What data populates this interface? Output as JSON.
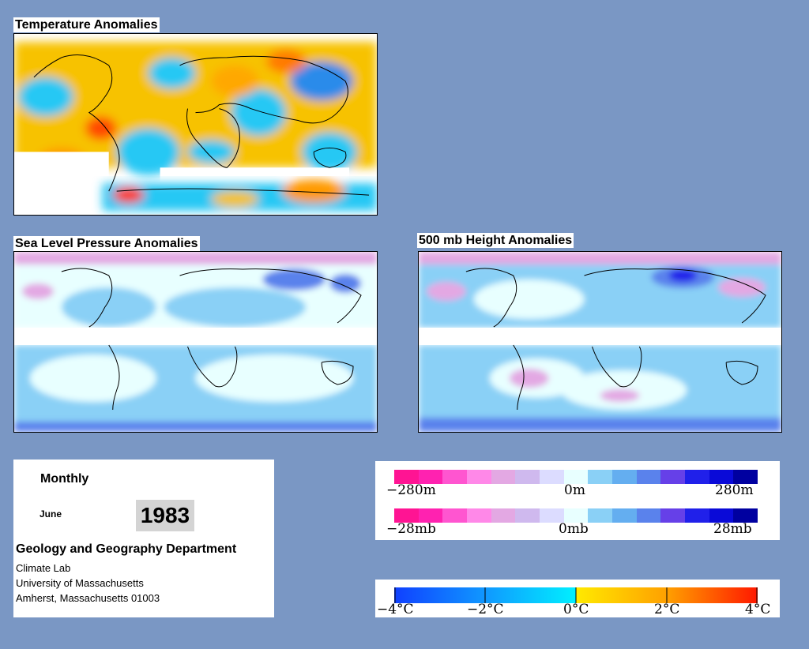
{
  "panels": {
    "temperature": {
      "title": "Temperature Anomalies"
    },
    "slp": {
      "title": "Sea Level Pressure Anomalies"
    },
    "height500": {
      "title": "500 mb Height Anomalies"
    }
  },
  "info": {
    "period": "Monthly",
    "month": "June",
    "year": "1983",
    "department": "Geology and Geography Department",
    "lab": "Climate Lab",
    "university": "University of Massachusetts",
    "address": "Amherst, Massachusetts 01003"
  },
  "legend_height": {
    "min": "−280m",
    "mid": "0m",
    "max": "280m"
  },
  "legend_pressure": {
    "min": "−28mb",
    "mid": "0mb",
    "max": "28mb"
  },
  "legend_temperature": {
    "labels": [
      "−4°C",
      "−2°C",
      "0°C",
      "2°C",
      "4°C"
    ]
  },
  "colors": {
    "background": "#7a97c4",
    "anomaly_scale": [
      "#ff1493",
      "#ff22b0",
      "#ff55d0",
      "#ff88e8",
      "#e3a8e3",
      "#cfb9ee",
      "#dcdcff",
      "#e8ffff",
      "#8ad0f6",
      "#64aef0",
      "#5a82ec",
      "#6640e8",
      "#2020ea",
      "#0a0ad8",
      "#0000a0"
    ],
    "temperature_scale": [
      "#1040ff",
      "#00c8ff",
      "#ffea00",
      "#ffa000",
      "#ff1800"
    ]
  }
}
